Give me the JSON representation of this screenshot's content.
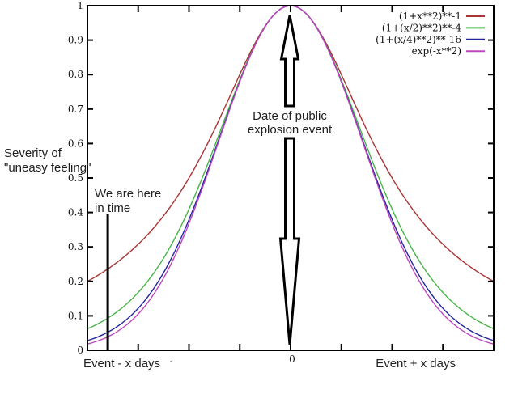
{
  "figure": {
    "background": "#ffffff",
    "y_axis_annotation": [
      "Severity of",
      "\"uneasy feeling\""
    ],
    "marker_annotation": [
      "We are here",
      "in time"
    ],
    "event_annotation": [
      "Date of public",
      "explosion event"
    ],
    "x_axis_left_label": "Event - x days",
    "x_axis_right_label": "Event + x days",
    "stray_mark": "."
  },
  "chart_data": {
    "type": "line",
    "title": "",
    "xlabel": "",
    "ylabel": "Severity of \"uneasy feeling\"",
    "x_range": [
      -2,
      2
    ],
    "y_range": [
      0,
      1
    ],
    "grid": false,
    "legend_position": "top-right-inside",
    "frame_color": "#000000",
    "tick_label_color": "#111111",
    "x_sample_step": 0.025,
    "x_ticks": [
      {
        "value": -1.5,
        "label": ""
      },
      {
        "value": -1.0,
        "label": ""
      },
      {
        "value": -0.5,
        "label": ""
      },
      {
        "value": 0.0,
        "label": "0"
      },
      {
        "value": 0.5,
        "label": ""
      },
      {
        "value": 1.0,
        "label": ""
      },
      {
        "value": 1.5,
        "label": ""
      }
    ],
    "y_ticks": [
      {
        "value": 0.0,
        "label": "0"
      },
      {
        "value": 0.1,
        "label": "0.1"
      },
      {
        "value": 0.2,
        "label": "0.2"
      },
      {
        "value": 0.3,
        "label": "0.3"
      },
      {
        "value": 0.4,
        "label": "0.4"
      },
      {
        "value": 0.5,
        "label": "0.5"
      },
      {
        "value": 0.6,
        "label": "0.6"
      },
      {
        "value": 0.7,
        "label": "0.7"
      },
      {
        "value": 0.8,
        "label": "0.8"
      },
      {
        "value": 0.9,
        "label": "0.9"
      },
      {
        "value": 1.0,
        "label": "1"
      }
    ],
    "series": [
      {
        "name": "(1+x**2)**-1",
        "color": "#aa3333",
        "expr": "1/(1+x*x)"
      },
      {
        "name": "(1+(x/2)**2)**-4",
        "color": "#46b446",
        "expr": "Math.pow(1+(x/2)*(x/2),-4)"
      },
      {
        "name": "(1+(x/4)**2)**-16",
        "color": "#2222a0",
        "expr": "Math.pow(1+(x/4)*(x/4),-16)"
      },
      {
        "name": "exp(-x**2)",
        "color": "#be46be",
        "expr": "Math.exp(-x*x)"
      }
    ],
    "marker_line": {
      "x": -1.8,
      "y_from": 0,
      "y_to": 0.395,
      "color": "#000000"
    }
  }
}
